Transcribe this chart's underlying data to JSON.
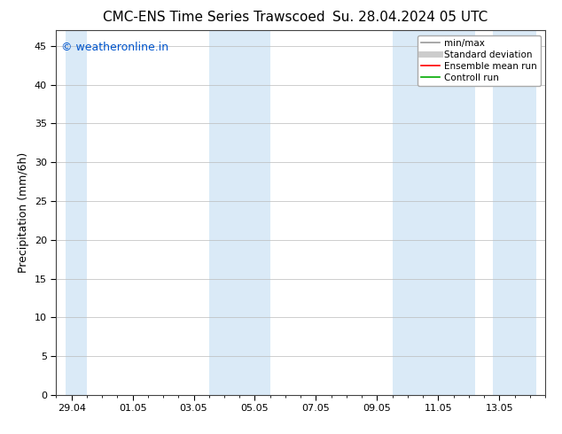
{
  "title_left": "CMC-ENS Time Series Trawscoed",
  "title_right": "Su. 28.04.2024 05 UTC",
  "ylabel": "Precipitation (mm/6h)",
  "ylim": [
    0,
    47
  ],
  "yticks": [
    0,
    5,
    10,
    15,
    20,
    25,
    30,
    35,
    40,
    45
  ],
  "x_tick_labels": [
    "29.04",
    "01.05",
    "03.05",
    "05.05",
    "07.05",
    "09.05",
    "11.05",
    "13.05"
  ],
  "x_tick_positions": [
    0,
    2,
    4,
    6,
    8,
    10,
    12,
    14
  ],
  "xlim": [
    -0.2,
    15.2
  ],
  "shaded_bands": [
    [
      -0.2,
      0.5
    ],
    [
      4.5,
      6.5
    ],
    [
      10.5,
      13.2
    ],
    [
      13.8,
      15.2
    ]
  ],
  "shade_color": "#daeaf7",
  "background_color": "#ffffff",
  "watermark": "© weatheronline.in",
  "watermark_color": "#0055cc",
  "legend_items": [
    {
      "label": "min/max",
      "color": "#999999",
      "lw": 1.2
    },
    {
      "label": "Standard deviation",
      "color": "#cccccc",
      "lw": 5
    },
    {
      "label": "Ensemble mean run",
      "color": "#ff0000",
      "lw": 1.2
    },
    {
      "label": "Controll run",
      "color": "#00aa00",
      "lw": 1.2
    }
  ],
  "title_fontsize": 11,
  "ylabel_fontsize": 9,
  "tick_fontsize": 8,
  "legend_fontsize": 7.5,
  "watermark_fontsize": 9
}
